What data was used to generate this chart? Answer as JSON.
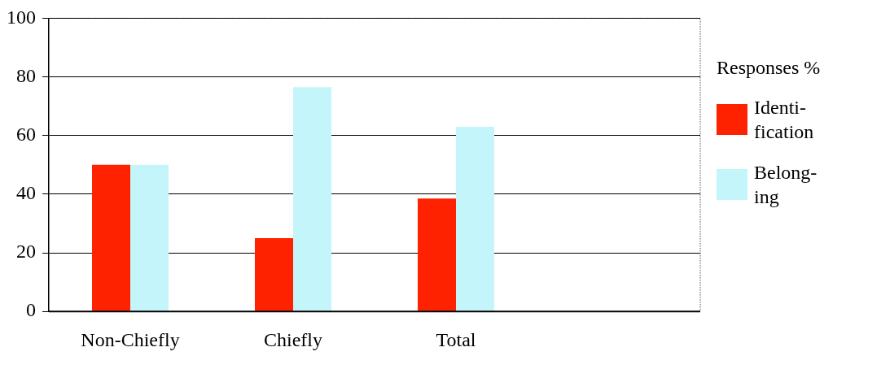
{
  "chart_data": {
    "type": "bar",
    "categories": [
      "Non-Chiefly",
      "Chiefly",
      "Total",
      null
    ],
    "series": [
      {
        "name": "Identi-fication",
        "color": "#ff2200",
        "values": [
          50,
          25,
          38.5,
          null
        ]
      },
      {
        "name": "Belong-ing",
        "color": "#c4f5fb",
        "values": [
          50,
          76.5,
          63,
          null
        ]
      }
    ],
    "ylim": [
      0,
      100
    ],
    "yticks": [
      0,
      20,
      40,
      60,
      80,
      100
    ],
    "grid": "y",
    "legend": "right",
    "legend_title": "Responses %"
  }
}
